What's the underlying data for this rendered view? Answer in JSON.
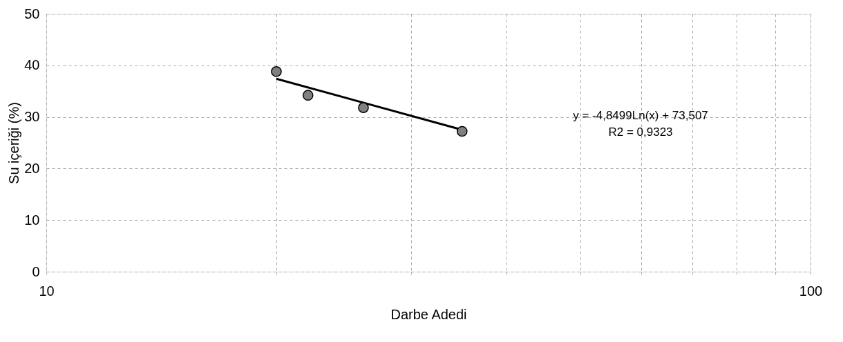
{
  "chart_data": {
    "type": "scatter",
    "xlabel": "Darbe Adedi",
    "ylabel": "Su içeriği (%)",
    "x": [
      20,
      22,
      26,
      35
    ],
    "series": [
      {
        "color": "#808080",
        "marker": "circle",
        "values": [
          38.8,
          34.2,
          31.8,
          27.2
        ]
      },
      {
        "type": "line",
        "color": "#000000",
        "x": [
          20,
          35
        ],
        "values": [
          37.4,
          27.5
        ]
      }
    ],
    "log": "x",
    "xlim": [
      10,
      100
    ],
    "xticks": [
      10,
      {
        "value": 20,
        "label": null
      },
      {
        "value": 30,
        "label": null
      },
      {
        "value": 40,
        "label": null
      },
      {
        "value": 50,
        "label": null
      },
      {
        "value": 60,
        "label": null
      },
      {
        "value": 70,
        "label": null
      },
      {
        "value": 80,
        "label": null
      },
      {
        "value": 90,
        "label": null
      },
      100
    ],
    "ylim": [
      0,
      50
    ],
    "yticks": [
      0,
      10,
      20,
      30,
      40,
      50
    ],
    "grid": true,
    "annotations": [
      "y = -4,8499Ln(x) + 73,507",
      "R2 = 0,9323"
    ]
  }
}
